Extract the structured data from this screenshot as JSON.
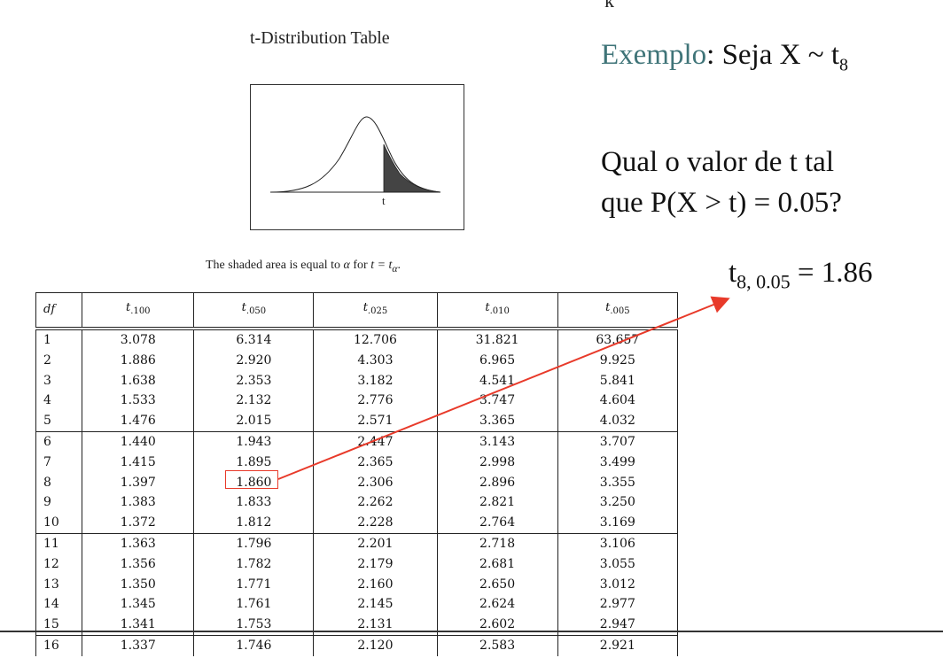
{
  "cut_letter": "k",
  "table_title": "t-Distribution Table",
  "curve_label": "t",
  "caption": {
    "prefix": "The shaded area is equal to ",
    "alpha": "α",
    "middle": " for ",
    "eq": "t = t",
    "eq_sub": "α",
    "suffix": "."
  },
  "table": {
    "header_df": "df",
    "header_t": "t",
    "header_subs": [
      ".100",
      ".050",
      ".025",
      ".010",
      ".005"
    ],
    "rows": [
      [
        "1",
        "3.078",
        "6.314",
        "12.706",
        "31.821",
        "63.657"
      ],
      [
        "2",
        "1.886",
        "2.920",
        "4.303",
        "6.965",
        "9.925"
      ],
      [
        "3",
        "1.638",
        "2.353",
        "3.182",
        "4.541",
        "5.841"
      ],
      [
        "4",
        "1.533",
        "2.132",
        "2.776",
        "3.747",
        "4.604"
      ],
      [
        "5",
        "1.476",
        "2.015",
        "2.571",
        "3.365",
        "4.032"
      ],
      [
        "6",
        "1.440",
        "1.943",
        "2.447",
        "3.143",
        "3.707"
      ],
      [
        "7",
        "1.415",
        "1.895",
        "2.365",
        "2.998",
        "3.499"
      ],
      [
        "8",
        "1.397",
        "1.860",
        "2.306",
        "2.896",
        "3.355"
      ],
      [
        "9",
        "1.383",
        "1.833",
        "2.262",
        "2.821",
        "3.250"
      ],
      [
        "10",
        "1.372",
        "1.812",
        "2.228",
        "2.764",
        "3.169"
      ],
      [
        "11",
        "1.363",
        "1.796",
        "2.201",
        "2.718",
        "3.106"
      ],
      [
        "12",
        "1.356",
        "1.782",
        "2.179",
        "2.681",
        "3.055"
      ],
      [
        "13",
        "1.350",
        "1.771",
        "2.160",
        "2.650",
        "3.012"
      ],
      [
        "14",
        "1.345",
        "1.761",
        "2.145",
        "2.624",
        "2.977"
      ],
      [
        "15",
        "1.341",
        "1.753",
        "2.131",
        "2.602",
        "2.947"
      ],
      [
        "16",
        "1.337",
        "1.746",
        "2.120",
        "2.583",
        "2.921"
      ]
    ],
    "highlighted_value": "1.860"
  },
  "example": {
    "keyword": "Exemplo",
    "rest": ": Seja X ~ t",
    "sub": "8"
  },
  "question": {
    "line1": "Qual o valor de t tal",
    "line2": "que P(X > t) = 0.05?"
  },
  "answer": {
    "t": "t",
    "sub": "8, 0.05",
    "rest": " = 1.86"
  },
  "colors": {
    "accent_keyword": "#3f7478",
    "highlight": "#e83a2a"
  }
}
